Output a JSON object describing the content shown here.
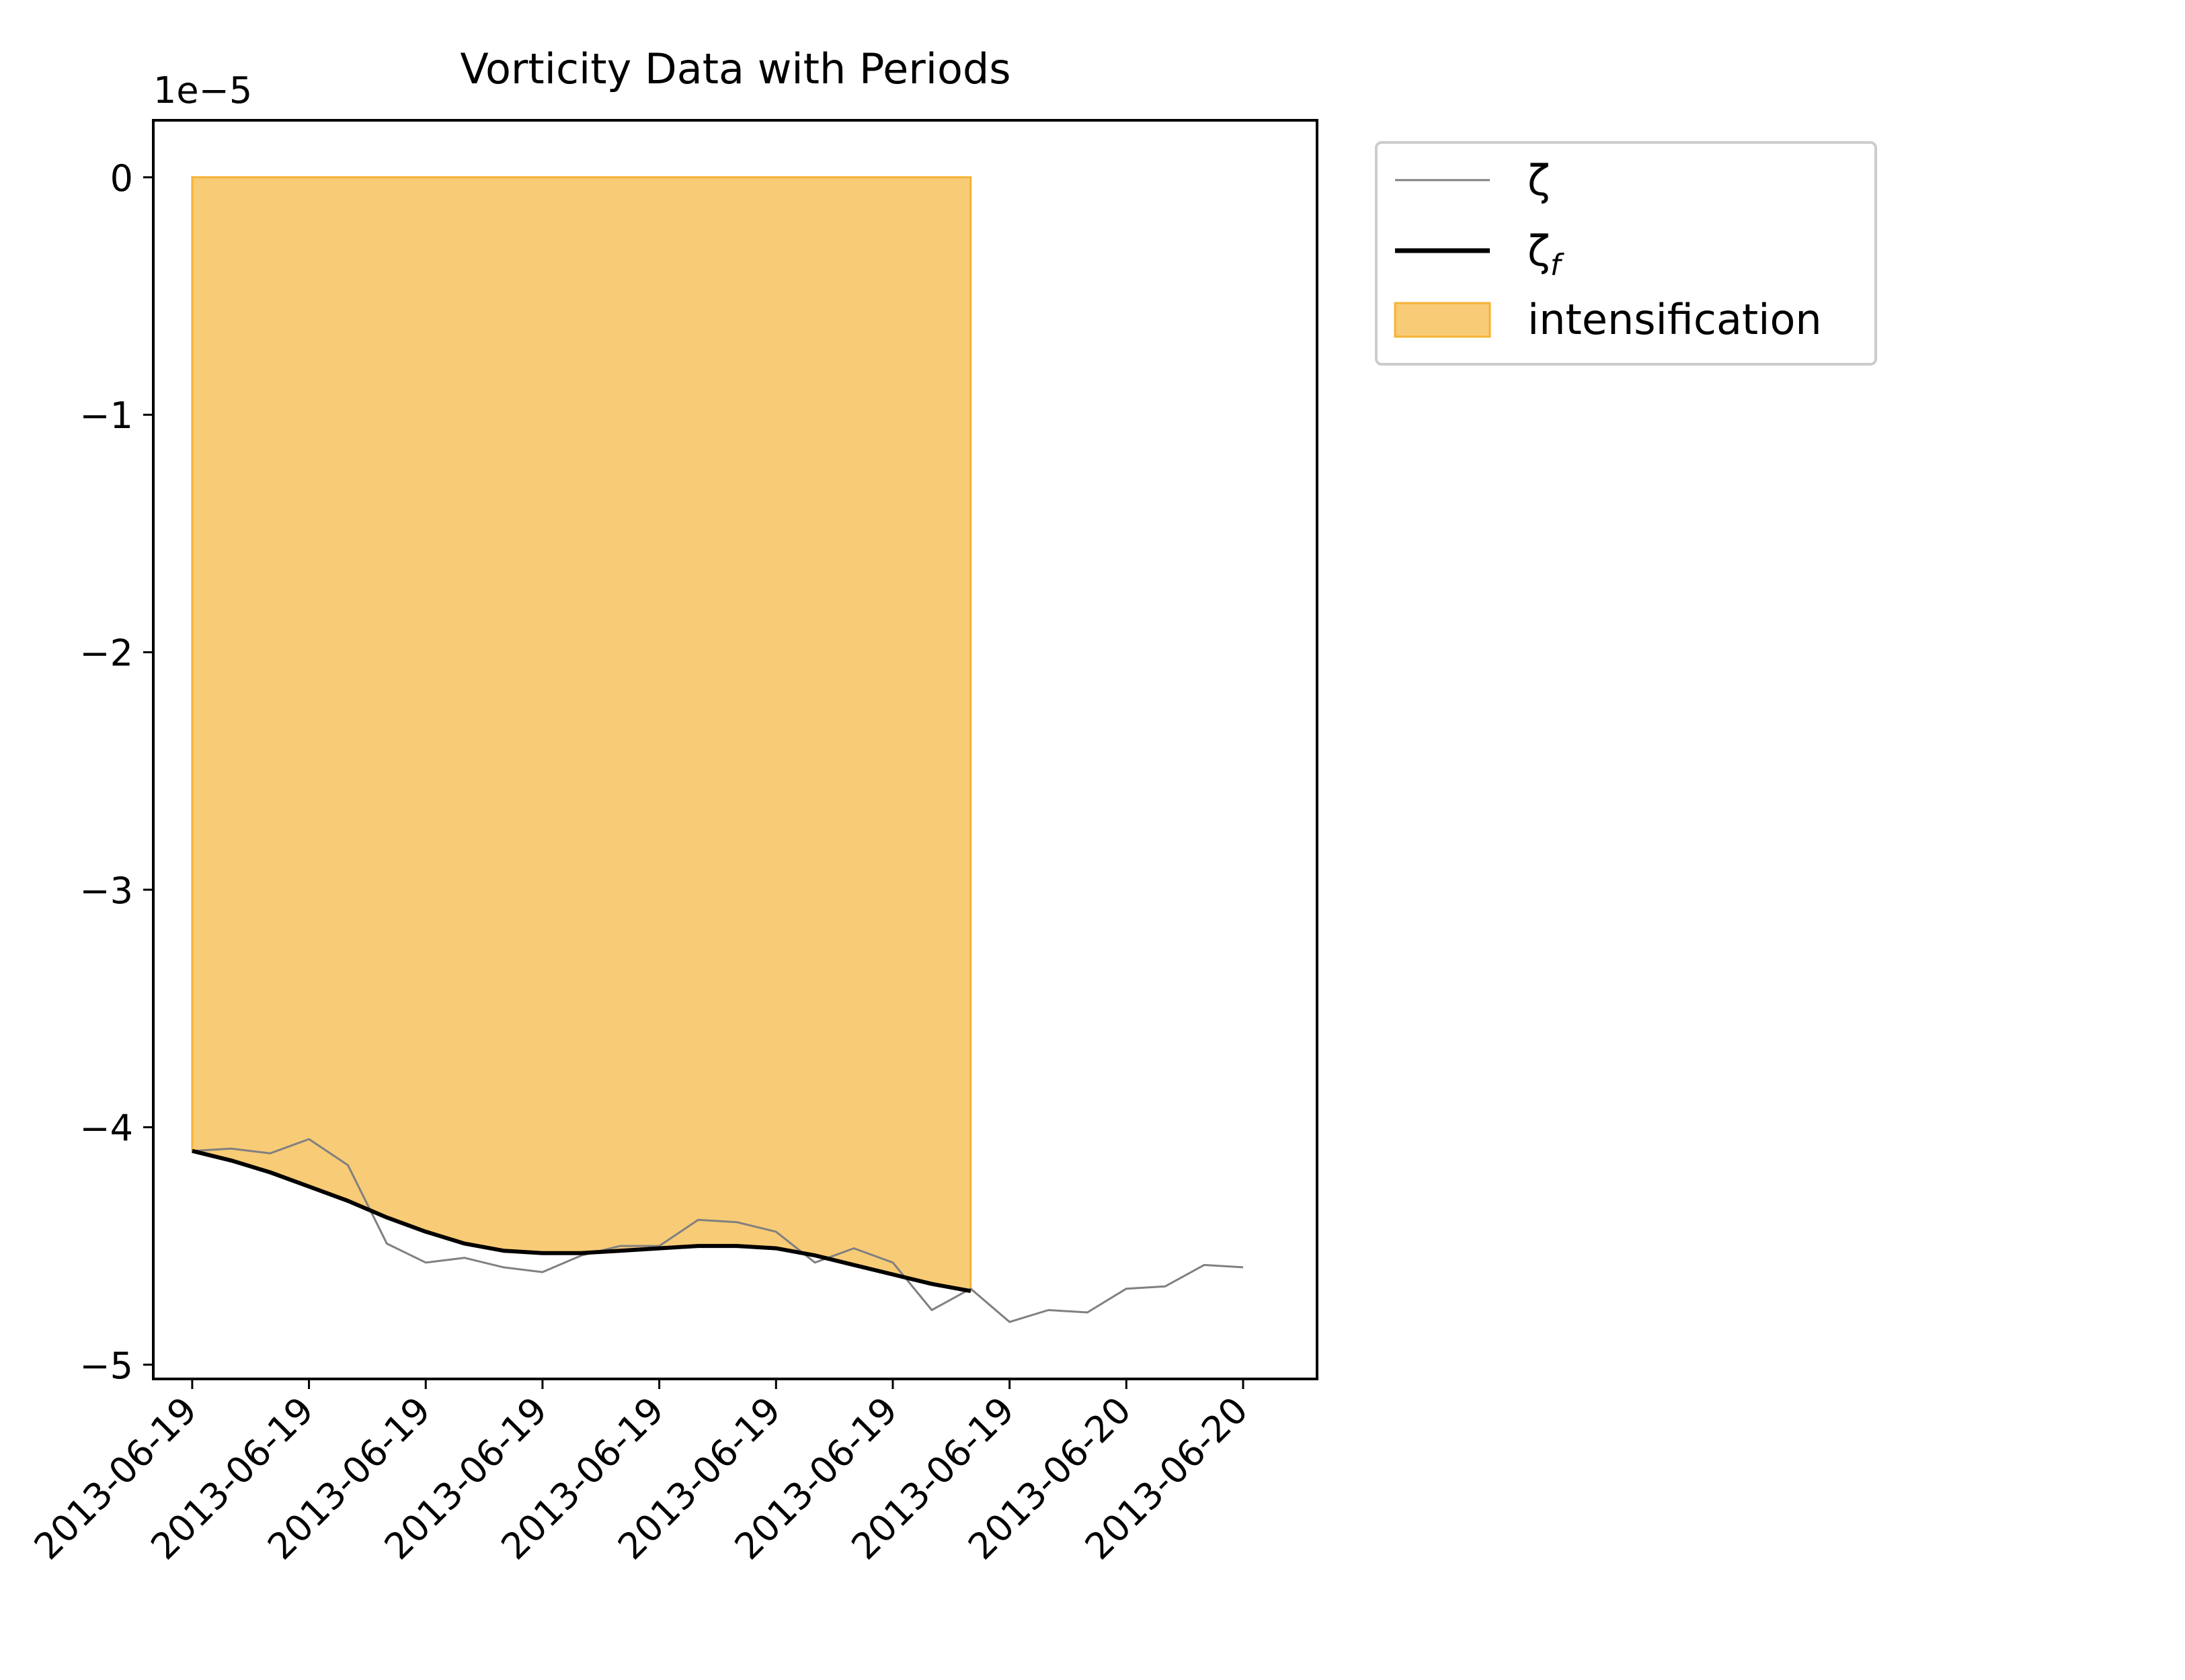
{
  "chart_data": {
    "type": "line",
    "title": "Vorticity Data with Periods",
    "scale_label": "1e−5",
    "xlabel": "",
    "ylabel": "",
    "ylim": [
      -5.06,
      0.24
    ],
    "y_ticks": [
      0,
      -1,
      -2,
      -3,
      -4,
      -5
    ],
    "y_tick_labels": [
      "0",
      "−1",
      "−2",
      "−3",
      "−4",
      "−5"
    ],
    "x_range_hours": [
      -1.0,
      28.9
    ],
    "x_ticks_hours": [
      0,
      3,
      6,
      9,
      12,
      15,
      18,
      21,
      24,
      27
    ],
    "x_tick_labels": [
      "2013-06-19",
      "2013-06-19",
      "2013-06-19",
      "2013-06-19",
      "2013-06-19",
      "2013-06-19",
      "2013-06-19",
      "2013-06-19",
      "2013-06-20",
      "2013-06-20"
    ],
    "series": [
      {
        "name": "ζ",
        "color": "#808080",
        "x_hours": [
          0,
          1,
          2,
          3,
          4,
          5,
          6,
          7,
          8,
          9,
          10,
          11,
          12,
          13,
          14,
          15,
          16,
          17,
          18,
          19,
          20,
          21,
          22,
          23,
          24,
          25,
          26,
          27
        ],
        "values": [
          -4.1,
          -4.09,
          -4.11,
          -4.05,
          -4.16,
          -4.49,
          -4.57,
          -4.55,
          -4.59,
          -4.61,
          -4.54,
          -4.5,
          -4.5,
          -4.39,
          -4.4,
          -4.44,
          -4.57,
          -4.51,
          -4.57,
          -4.77,
          -4.68,
          -4.82,
          -4.77,
          -4.78,
          -4.68,
          -4.67,
          -4.58,
          -4.59
        ]
      },
      {
        "name": "ζ",
        "name_subscript": "f",
        "color": "#000000",
        "x_hours": [
          0,
          1,
          2,
          3,
          4,
          5,
          6,
          7,
          8,
          9,
          10,
          11,
          12,
          13,
          14,
          15,
          16,
          17,
          18,
          19,
          20
        ],
        "values": [
          -4.1,
          -4.14,
          -4.19,
          -4.25,
          -4.31,
          -4.38,
          -4.44,
          -4.49,
          -4.52,
          -4.53,
          -4.53,
          -4.52,
          -4.51,
          -4.5,
          -4.5,
          -4.51,
          -4.54,
          -4.58,
          -4.62,
          -4.66,
          -4.69
        ]
      }
    ],
    "shaded_region": {
      "name": "intensification",
      "color": "#f5b335",
      "opacity": 0.68,
      "x_hours": [
        0,
        1,
        2,
        3,
        4,
        5,
        6,
        7,
        8,
        9,
        10,
        11,
        12,
        13,
        14,
        15,
        16,
        17,
        18,
        19,
        20
      ],
      "top": 0
    },
    "legend": {
      "placement": "outside-top-right",
      "entries": [
        "ζ",
        "ζ",
        "intensification"
      ]
    }
  }
}
